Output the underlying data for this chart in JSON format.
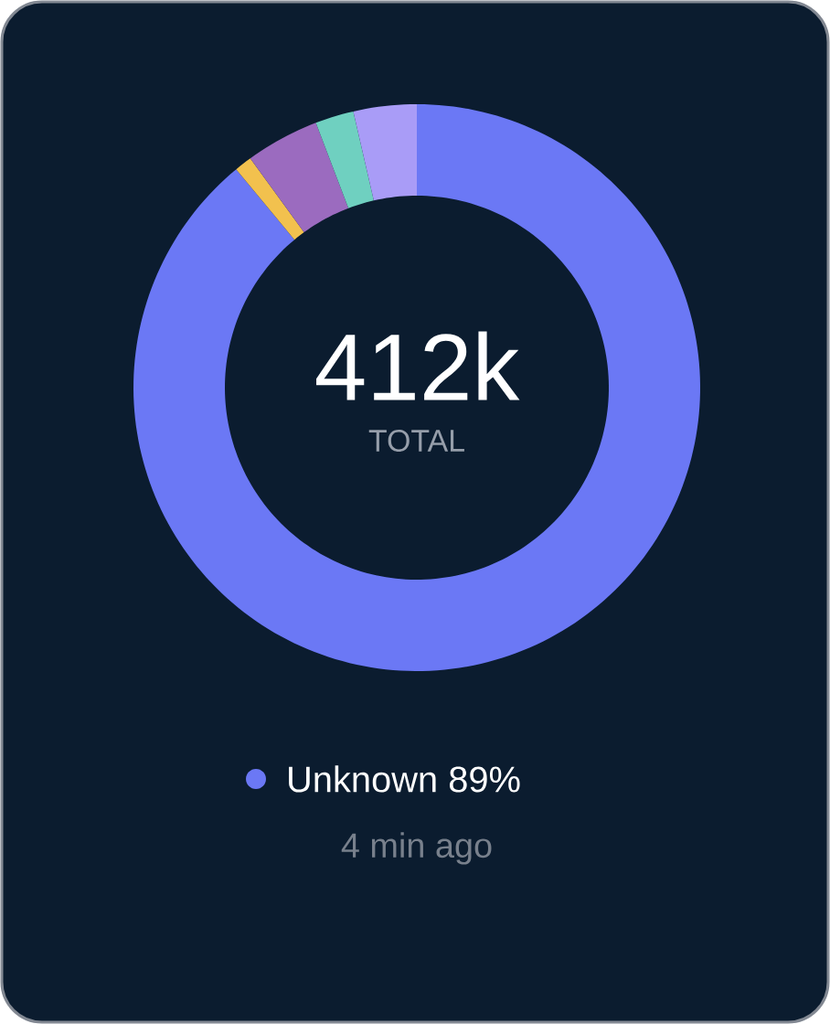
{
  "chart_data": {
    "type": "donut",
    "title": "412k",
    "subtitle": "TOTAL",
    "categories": [
      "Unknown",
      null,
      null,
      null,
      null
    ],
    "values": [
      89,
      1,
      4.2,
      2.2,
      3.6
    ],
    "colors": [
      "#6b78f5",
      "#f2c14e",
      "#9b6bbf",
      "#6fd0c0",
      "#a99cf7"
    ],
    "value_labels": [
      "89%",
      null,
      null,
      null,
      null
    ],
    "legend": "bottom",
    "annotations": [
      "4 min ago"
    ]
  }
}
